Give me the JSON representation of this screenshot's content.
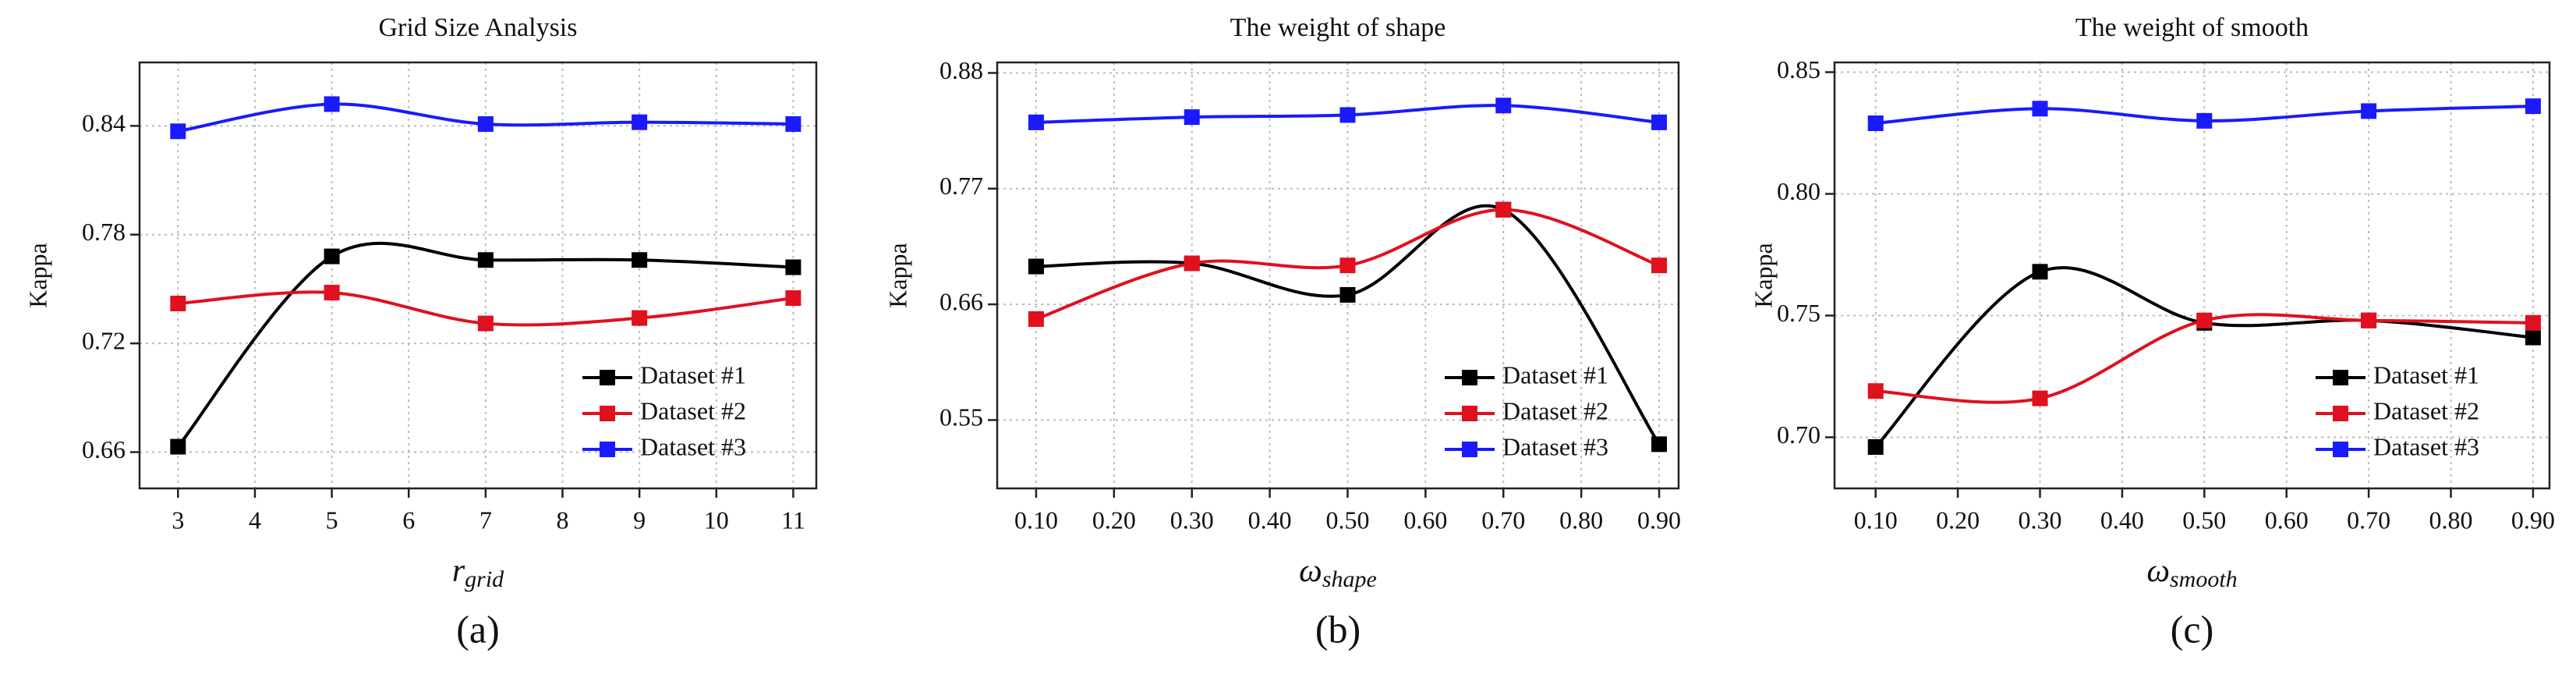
{
  "chart_data": [
    {
      "type": "line",
      "title": "Grid Size Analysis",
      "ylabel": "Kappa",
      "xlabel": {
        "symbol": "r",
        "subscript": "grid"
      },
      "caption": "(a)",
      "x": [
        3,
        5,
        7,
        9,
        11
      ],
      "xlim": [
        2.5,
        11.3
      ],
      "xticks": [
        3,
        4,
        5,
        6,
        7,
        8,
        9,
        10,
        11
      ],
      "ylim": [
        0.64,
        0.875
      ],
      "yticks": [
        0.66,
        0.72,
        0.78,
        0.84
      ],
      "grid": true,
      "legend": "lower right",
      "series": [
        {
          "name": "Dataset #1",
          "color": "#000000",
          "values": [
            0.663,
            0.768,
            0.766,
            0.766,
            0.762
          ]
        },
        {
          "name": "Dataset #2",
          "color": "#e0101e",
          "values": [
            0.742,
            0.748,
            0.731,
            0.734,
            0.745
          ]
        },
        {
          "name": "Dataset #3",
          "color": "#1a1aff",
          "values": [
            0.837,
            0.852,
            0.841,
            0.842,
            0.841
          ]
        }
      ]
    },
    {
      "type": "line",
      "title": "The weight of shape",
      "ylabel": "Kappa",
      "xlabel": {
        "symbol": "ω",
        "subscript": "shape"
      },
      "caption": "(b)",
      "x": [
        0.1,
        0.3,
        0.5,
        0.7,
        0.9
      ],
      "xlim": [
        0.05,
        0.925
      ],
      "xticks": [
        {
          "value": 0.1,
          "label": "0.10"
        },
        {
          "value": 0.2,
          "label": "0.20"
        },
        {
          "value": 0.3,
          "label": "0.30"
        },
        {
          "value": 0.4,
          "label": "0.40"
        },
        {
          "value": 0.5,
          "label": "0.50"
        },
        {
          "value": 0.6,
          "label": "0.60"
        },
        {
          "value": 0.7,
          "label": "0.70"
        },
        {
          "value": 0.8,
          "label": "0.80"
        },
        {
          "value": 0.9,
          "label": "0.90"
        }
      ],
      "ylim": [
        0.485,
        0.89
      ],
      "yticks": [
        0.55,
        0.66,
        0.77,
        0.88
      ],
      "grid": true,
      "legend": "lower right",
      "series": [
        {
          "name": "Dataset #1",
          "color": "#000000",
          "values": [
            0.696,
            0.699,
            0.669,
            0.75,
            0.527
          ]
        },
        {
          "name": "Dataset #2",
          "color": "#e0101e",
          "values": [
            0.646,
            0.699,
            0.697,
            0.75,
            0.697
          ]
        },
        {
          "name": "Dataset #3",
          "color": "#1a1aff",
          "values": [
            0.833,
            0.838,
            0.84,
            0.849,
            0.833
          ]
        }
      ]
    },
    {
      "type": "line",
      "title": "The weight of smooth",
      "ylabel": "Kappa",
      "xlabel": {
        "symbol": "ω",
        "subscript": "smooth"
      },
      "caption": "(c)",
      "x": [
        0.1,
        0.3,
        0.5,
        0.7,
        0.9
      ],
      "xlim": [
        0.05,
        0.92
      ],
      "xticks": [
        {
          "value": 0.1,
          "label": "0.10"
        },
        {
          "value": 0.2,
          "label": "0.20"
        },
        {
          "value": 0.3,
          "label": "0.30"
        },
        {
          "value": 0.4,
          "label": "0.40"
        },
        {
          "value": 0.5,
          "label": "0.50"
        },
        {
          "value": 0.6,
          "label": "0.60"
        },
        {
          "value": 0.7,
          "label": "0.70"
        },
        {
          "value": 0.8,
          "label": "0.80"
        },
        {
          "value": 0.9,
          "label": "0.90"
        }
      ],
      "ylim": [
        0.679,
        0.854
      ],
      "yticks": [
        {
          "value": 0.7,
          "label": "0.70"
        },
        {
          "value": 0.75,
          "label": "0.75"
        },
        {
          "value": 0.8,
          "label": "0.80"
        },
        {
          "value": 0.85,
          "label": "0.85"
        }
      ],
      "grid": true,
      "legend": "lower right",
      "series": [
        {
          "name": "Dataset #1",
          "color": "#000000",
          "values": [
            0.696,
            0.768,
            0.747,
            0.748,
            0.741
          ]
        },
        {
          "name": "Dataset #2",
          "color": "#e0101e",
          "values": [
            0.719,
            0.716,
            0.748,
            0.748,
            0.747
          ]
        },
        {
          "name": "Dataset #3",
          "color": "#1a1aff",
          "values": [
            0.829,
            0.835,
            0.83,
            0.834,
            0.836
          ]
        }
      ]
    }
  ]
}
